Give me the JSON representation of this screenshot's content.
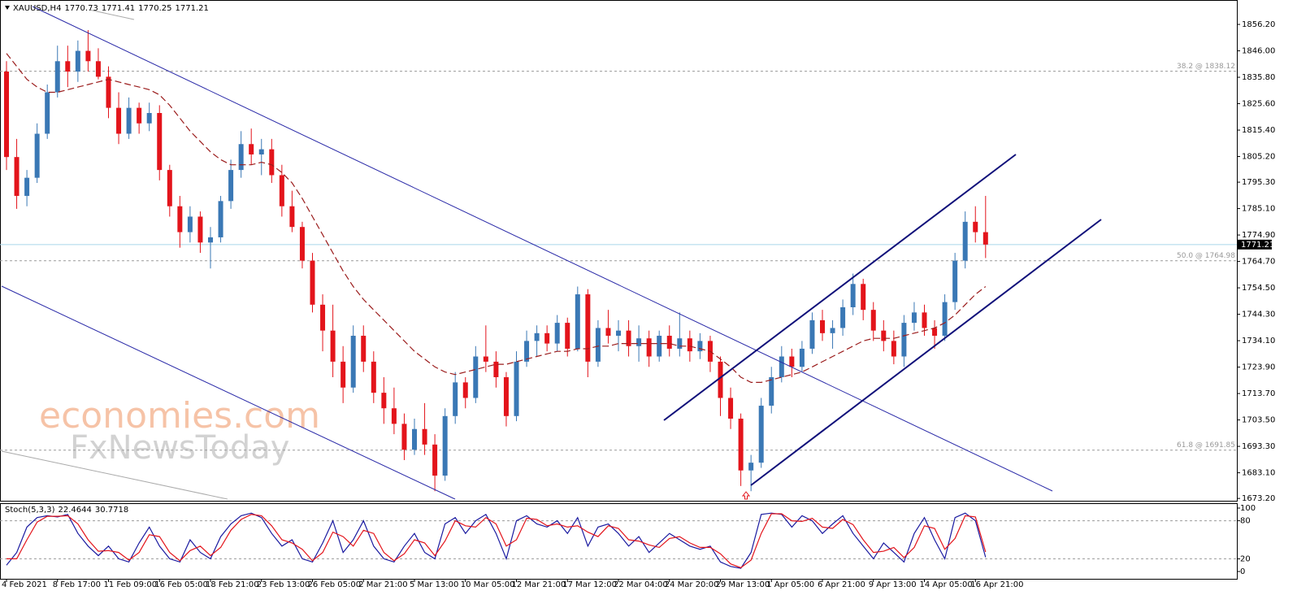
{
  "chart_data": [
    {
      "type": "candlestick",
      "symbol": "XAUUSD,H4",
      "last_bar": [
        1770.73,
        1771.41,
        1770.25,
        1771.21
      ],
      "watermark": [
        "economies.com",
        "FxNewsToday"
      ],
      "categories": [
        "4 Feb 2021",
        null,
        null,
        null,
        null,
        "8 Feb 17:00",
        null,
        null,
        null,
        null,
        "11 Feb 09:00",
        null,
        null,
        null,
        null,
        "16 Feb 05:00",
        null,
        null,
        null,
        null,
        "18 Feb 21:00",
        null,
        null,
        null,
        null,
        "23 Feb 13:00",
        null,
        null,
        null,
        null,
        "26 Feb 05:00",
        null,
        null,
        null,
        null,
        "2 Mar 21:00",
        null,
        null,
        null,
        null,
        "5 Mar 13:00",
        null,
        null,
        null,
        null,
        "10 Mar 05:00",
        null,
        null,
        null,
        null,
        "12 Mar 21:00",
        null,
        null,
        null,
        null,
        "17 Mar 12:00",
        null,
        null,
        null,
        null,
        "22 Mar 04:00",
        null,
        null,
        null,
        null,
        "24 Mar 20:00",
        null,
        null,
        null,
        null,
        "29 Mar 13:00",
        null,
        null,
        null,
        null,
        "1 Apr 05:00",
        null,
        null,
        null,
        null,
        "6 Apr 21:00",
        null,
        null,
        null,
        null,
        "9 Apr 13:00",
        null,
        null,
        null,
        null,
        "14 Apr 05:00",
        null,
        null,
        null,
        null,
        "16 Apr 21:00",
        null
      ],
      "open": [
        1838,
        1805,
        1790,
        1797,
        1814,
        1830,
        1842,
        1838,
        1846,
        1842,
        1836,
        1824,
        1814,
        1824,
        1818,
        1822,
        1800,
        1786,
        1776,
        1782,
        1772,
        1774,
        1788,
        1800,
        1810,
        1806,
        1808,
        1798,
        1786,
        1778,
        1765,
        1748,
        1738,
        1726,
        1716,
        1736,
        1726,
        1714,
        1708,
        1702,
        1692,
        1700,
        1694,
        1682,
        1705,
        1718,
        1712,
        1728,
        1726,
        1720,
        1705,
        1726,
        1734,
        1737,
        1733,
        1741,
        1731,
        1752,
        1726,
        1739,
        1736,
        1738,
        1732,
        1735,
        1728,
        1736,
        1731,
        1735,
        1730,
        1734,
        1726,
        1712,
        1704,
        1684,
        1687,
        1709,
        1720,
        1728,
        1724,
        1731,
        1742,
        1737,
        1739,
        1747,
        1756,
        1746,
        1738,
        1734,
        1728,
        1741,
        1745,
        1739,
        1736,
        1749,
        1765,
        1780,
        1776
      ],
      "high": [
        1842,
        1812,
        1800,
        1818,
        1833,
        1848,
        1848,
        1850,
        1854,
        1847,
        1840,
        1830,
        1828,
        1826,
        1826,
        1825,
        1802,
        1790,
        1786,
        1784,
        1778,
        1790,
        1804,
        1815,
        1816,
        1812,
        1812,
        1802,
        1792,
        1780,
        1768,
        1752,
        1748,
        1732,
        1740,
        1740,
        1730,
        1720,
        1716,
        1706,
        1704,
        1710,
        1698,
        1708,
        1722,
        1720,
        1732,
        1740,
        1730,
        1722,
        1730,
        1738,
        1740,
        1740,
        1744,
        1743,
        1755,
        1754,
        1742,
        1746,
        1742,
        1742,
        1740,
        1738,
        1738,
        1740,
        1745,
        1738,
        1737,
        1736,
        1728,
        1716,
        1706,
        1690,
        1712,
        1724,
        1732,
        1731,
        1734,
        1745,
        1746,
        1742,
        1750,
        1760,
        1758,
        1749,
        1742,
        1738,
        1744,
        1749,
        1748,
        1742,
        1752,
        1768,
        1784,
        1786,
        1790
      ],
      "low": [
        1800,
        1785,
        1786,
        1795,
        1812,
        1828,
        1832,
        1834,
        1838,
        1835,
        1820,
        1810,
        1812,
        1814,
        1815,
        1796,
        1782,
        1770,
        1772,
        1768,
        1762,
        1772,
        1785,
        1797,
        1802,
        1798,
        1795,
        1782,
        1776,
        1762,
        1745,
        1730,
        1720,
        1710,
        1714,
        1722,
        1710,
        1702,
        1698,
        1688,
        1690,
        1690,
        1676,
        1680,
        1702,
        1708,
        1710,
        1722,
        1716,
        1701,
        1703,
        1724,
        1728,
        1730,
        1730,
        1728,
        1730,
        1720,
        1724,
        1733,
        1730,
        1728,
        1726,
        1724,
        1726,
        1728,
        1728,
        1726,
        1727,
        1722,
        1705,
        1700,
        1678,
        1676,
        1685,
        1706,
        1718,
        1720,
        1722,
        1729,
        1734,
        1731,
        1736,
        1744,
        1742,
        1734,
        1730,
        1725,
        1724,
        1738,
        1736,
        1731,
        1734,
        1746,
        1762,
        1772,
        1766
      ],
      "close": [
        1805,
        1790,
        1797,
        1814,
        1830,
        1842,
        1838,
        1846,
        1842,
        1836,
        1824,
        1814,
        1824,
        1818,
        1822,
        1800,
        1786,
        1776,
        1782,
        1772,
        1774,
        1788,
        1800,
        1810,
        1806,
        1808,
        1798,
        1786,
        1778,
        1765,
        1748,
        1738,
        1726,
        1716,
        1736,
        1726,
        1714,
        1708,
        1702,
        1692,
        1700,
        1694,
        1682,
        1705,
        1718,
        1712,
        1728,
        1726,
        1720,
        1705,
        1726,
        1734,
        1737,
        1733,
        1741,
        1731,
        1752,
        1726,
        1739,
        1736,
        1738,
        1732,
        1735,
        1728,
        1736,
        1731,
        1735,
        1730,
        1734,
        1726,
        1712,
        1704,
        1684,
        1687,
        1709,
        1720,
        1728,
        1724,
        1731,
        1742,
        1737,
        1739,
        1747,
        1756,
        1746,
        1738,
        1734,
        1728,
        1741,
        1745,
        1739,
        1736,
        1749,
        1765,
        1780,
        1776,
        1771.21
      ],
      "up_color": "#3a78b5",
      "down_color": "#e3141b",
      "ma": {
        "color": "#9b1c1c",
        "values": [
          1845,
          1840,
          1835,
          1832,
          1830,
          1830,
          1831,
          1832,
          1833,
          1834,
          1835,
          1834,
          1833,
          1832,
          1831,
          1829,
          1825,
          1820,
          1815,
          1811,
          1807,
          1804,
          1802,
          1802,
          1802,
          1803,
          1802,
          1799,
          1795,
          1789,
          1782,
          1775,
          1768,
          1761,
          1755,
          1750,
          1746,
          1742,
          1738,
          1734,
          1730,
          1727,
          1724,
          1722,
          1721,
          1722,
          1723,
          1724,
          1725,
          1725,
          1726,
          1727,
          1728,
          1729,
          1730,
          1730,
          1731,
          1731,
          1732,
          1732,
          1733,
          1733,
          1733,
          1733,
          1733,
          1733,
          1732,
          1732,
          1731,
          1730,
          1727,
          1724,
          1720,
          1718,
          1718,
          1719,
          1720,
          1721,
          1722,
          1724,
          1726,
          1728,
          1730,
          1732,
          1734,
          1735,
          1735,
          1735,
          1736,
          1737,
          1738,
          1739,
          1741,
          1744,
          1748,
          1752,
          1755
        ]
      },
      "levels": [
        {
          "value": 1838.12,
          "label": "38.2 @ 1838.12"
        },
        {
          "value": 1764.98,
          "label": "50.0 @ 1764.98"
        },
        {
          "value": 1691.85,
          "label": "61.8 @ 1691.85"
        }
      ],
      "last_price": 1771.21,
      "ylim": [
        1672.3,
        1865.0
      ],
      "yticks": [
        {
          "value": 1673.2,
          "label": "1673.20"
        },
        {
          "value": 1683.1,
          "label": "1683.10"
        },
        {
          "value": 1693.3,
          "label": "1693.30"
        },
        {
          "value": 1703.5,
          "label": "1703.50"
        },
        {
          "value": 1713.7,
          "label": "1713.70"
        },
        {
          "value": 1723.9,
          "label": "1723.90"
        },
        {
          "value": 1734.1,
          "label": "1734.10"
        },
        {
          "value": 1744.3,
          "label": "1744.30"
        },
        {
          "value": 1754.5,
          "label": "1754.50"
        },
        {
          "value": 1764.7,
          "label": "1764.70"
        },
        {
          "value": 1774.9,
          "label": "1774.90"
        },
        {
          "value": 1785.1,
          "label": "1785.10"
        },
        {
          "value": 1795.3,
          "label": "1795.30"
        },
        {
          "value": 1805.2,
          "label": "1805.20"
        },
        {
          "value": 1815.4,
          "label": "1815.40"
        },
        {
          "value": 1825.6,
          "label": "1825.60"
        },
        {
          "value": 1835.8,
          "label": "1835.80"
        },
        {
          "value": 1846.0,
          "label": "1846.00"
        },
        {
          "value": 1856.2,
          "label": "1856.20"
        }
      ]
    },
    {
      "type": "line",
      "title": "Stoch(5,3,3)",
      "series": [
        {
          "name": "%K",
          "color": "#1a1aa0",
          "values": [
            10,
            30,
            70,
            85,
            88,
            86,
            90,
            60,
            40,
            25,
            40,
            20,
            15,
            45,
            70,
            40,
            20,
            15,
            50,
            30,
            20,
            55,
            75,
            88,
            92,
            85,
            60,
            40,
            50,
            20,
            15,
            45,
            80,
            30,
            50,
            80,
            40,
            20,
            15,
            40,
            60,
            30,
            20,
            75,
            85,
            60,
            80,
            90,
            60,
            20,
            80,
            88,
            75,
            70,
            80,
            60,
            85,
            40,
            70,
            75,
            60,
            40,
            55,
            30,
            45,
            60,
            50,
            40,
            35,
            40,
            15,
            8,
            5,
            30,
            90,
            92,
            90,
            70,
            88,
            80,
            60,
            75,
            88,
            60,
            40,
            20,
            45,
            30,
            15,
            60,
            85,
            50,
            20,
            85,
            92,
            80,
            22.4644
          ]
        },
        {
          "name": "%D",
          "color": "#e3141b",
          "values": [
            20,
            20,
            50,
            78,
            87,
            87,
            88,
            75,
            50,
            32,
            33,
            30,
            18,
            30,
            58,
            55,
            30,
            17,
            33,
            40,
            25,
            38,
            65,
            82,
            90,
            88,
            72,
            50,
            45,
            35,
            17,
            30,
            62,
            55,
            40,
            65,
            60,
            30,
            17,
            28,
            50,
            45,
            25,
            48,
            80,
            72,
            70,
            85,
            75,
            40,
            50,
            84,
            82,
            72,
            75,
            70,
            72,
            62,
            55,
            72,
            68,
            50,
            48,
            42,
            38,
            52,
            55,
            45,
            38,
            38,
            28,
            12,
            6,
            18,
            60,
            91,
            91,
            80,
            79,
            84,
            70,
            68,
            82,
            74,
            50,
            30,
            32,
            38,
            22,
            38,
            72,
            68,
            35,
            52,
            88,
            86,
            30.7718
          ]
        }
      ],
      "ylim": [
        -11.5,
        106.4
      ],
      "yticks": [
        0,
        20,
        80,
        100
      ],
      "grid": [
        20,
        80
      ]
    }
  ]
}
